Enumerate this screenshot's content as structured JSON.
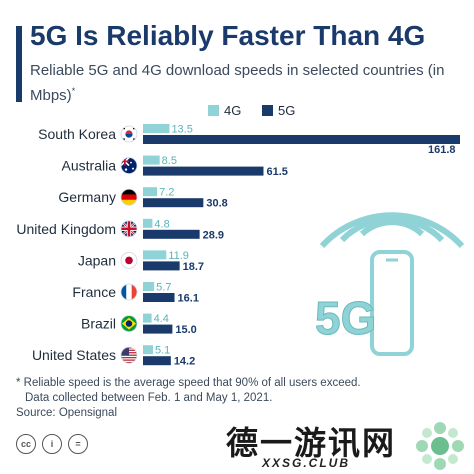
{
  "header": {
    "title": "5G Is Reliably Faster Than 4G",
    "subtitle": "Reliable 5G and 4G download speeds in selected countries (in Mbps)",
    "subtitle_mark": "*"
  },
  "chart_data": {
    "type": "bar",
    "orientation": "horizontal",
    "categories": [
      "South Korea",
      "Australia",
      "Germany",
      "United Kingdom",
      "Japan",
      "France",
      "Brazil",
      "United States"
    ],
    "series": [
      {
        "name": "4G",
        "values": [
          13.5,
          8.5,
          7.2,
          4.8,
          11.9,
          5.7,
          4.4,
          5.1
        ],
        "color": "#8fd3d6"
      },
      {
        "name": "5G",
        "values": [
          161.8,
          61.5,
          30.8,
          28.9,
          18.7,
          16.1,
          15.0,
          14.2
        ],
        "color": "#1a3a6b"
      }
    ],
    "value_labels_4g": [
      "13.5",
      "8.5",
      "7.2",
      "4.8",
      "11.9",
      "5.7",
      "4.4",
      "5.1"
    ],
    "value_labels_5g": [
      "161.8",
      "61.5",
      "30.8",
      "28.9",
      "18.7",
      "16.1",
      "15.0",
      "14.2"
    ],
    "flags": [
      "south-korea-flag-icon",
      "australia-flag-icon",
      "germany-flag-icon",
      "united-kingdom-flag-icon",
      "japan-flag-icon",
      "france-flag-icon",
      "brazil-flag-icon",
      "united-states-flag-icon"
    ],
    "xlim": [
      0,
      161.8
    ],
    "grid": false,
    "legend_position": "top"
  },
  "illustration": {
    "label": "5G",
    "icon": "smartphone-wifi-icon"
  },
  "footnote": {
    "line1": "* Reliable speed is the average speed that 90% of all users exceed.",
    "line2": "Data collected between Feb. 1 and May 1, 2021.",
    "source": "Source: Opensignal"
  },
  "footer": {
    "icons": [
      "creative-commons-icon",
      "attribution-icon",
      "no-derivatives-icon"
    ],
    "watermark": "德一游讯网",
    "watermark_sub": "XXSG.CLUB"
  },
  "colors": {
    "primary": "#1a3a6b",
    "light": "#8fd3d6",
    "illustration": "#8fd3d6"
  }
}
